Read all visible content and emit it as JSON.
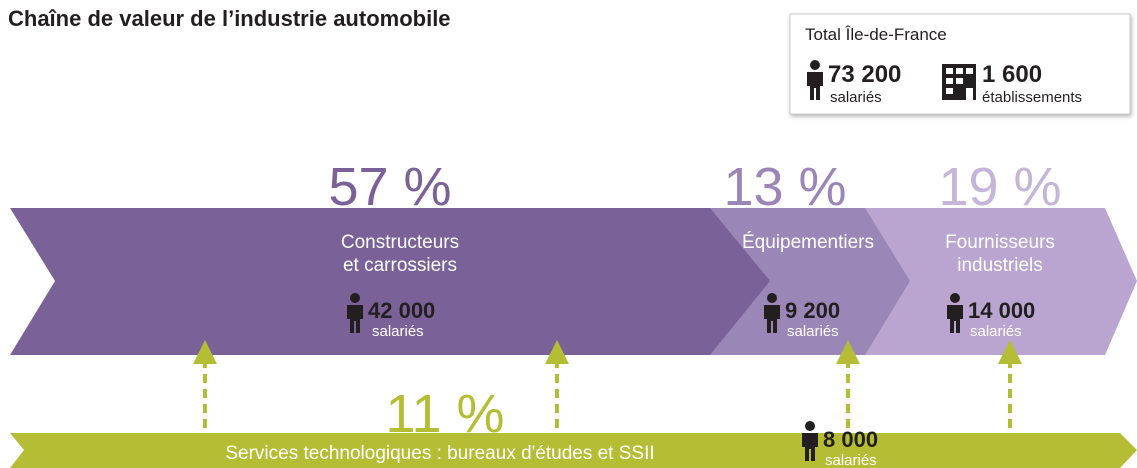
{
  "title": "Chaîne de valeur de l’industrie automobile",
  "total": {
    "label": "Total Île-de-France",
    "employees": {
      "value": "73 200",
      "unit": "salariés"
    },
    "establishments": {
      "value": "1 600",
      "unit": "établissements"
    }
  },
  "segments": [
    {
      "share": "57 %",
      "name_lines": [
        "Constructeurs",
        "et carrossiers"
      ],
      "employees": "42 000",
      "unit": "salariés"
    },
    {
      "share": "13 %",
      "name_lines": [
        "Équipementiers"
      ],
      "employees": "9 200",
      "unit": "salariés"
    },
    {
      "share": "19 %",
      "name_lines": [
        "Fournisseurs",
        "industriels"
      ],
      "employees": "14 000",
      "unit": "salariés"
    }
  ],
  "services": {
    "share": "11 %",
    "name": "Services technologiques : bureaux d'études et SSII",
    "employees": "8 000",
    "unit": "salariés"
  }
}
